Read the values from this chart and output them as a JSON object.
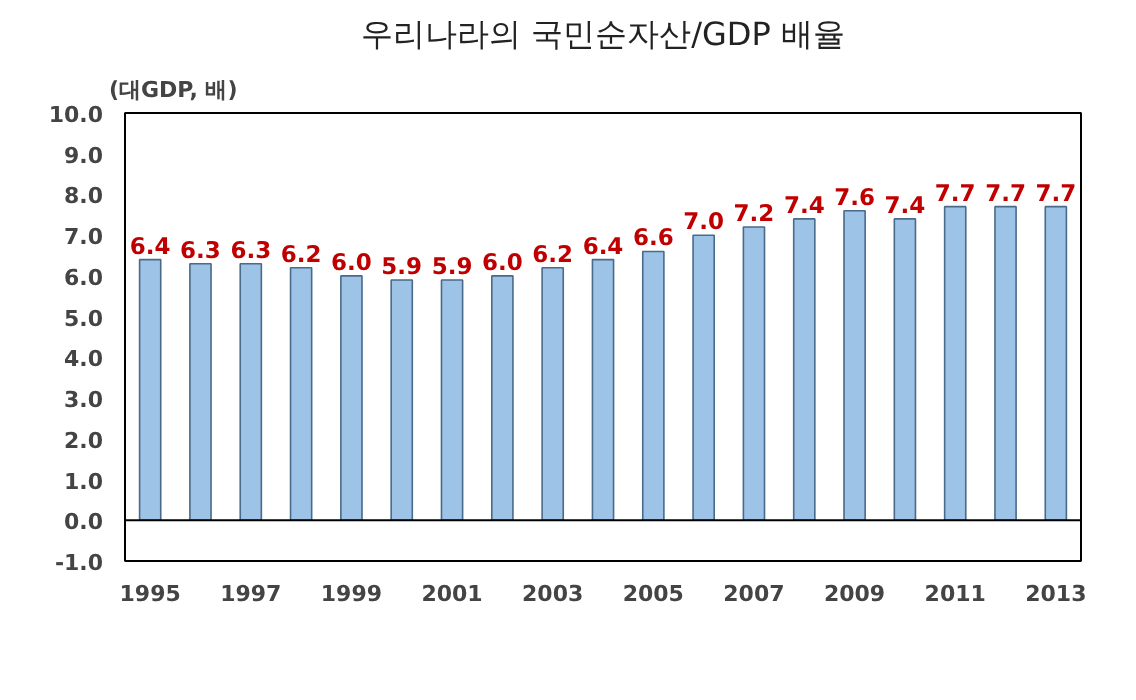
{
  "chart_data": {
    "type": "bar",
    "title": "우리나라의 국민순자산/GDP 배율",
    "ylabel": "(대GDP, 배)",
    "categories": [
      "1995",
      null,
      "1997",
      null,
      "1999",
      null,
      "2001",
      null,
      "2003",
      null,
      "2005",
      null,
      "2007",
      null,
      "2009",
      null,
      "2011",
      null,
      "2013"
    ],
    "values": [
      6.4,
      6.3,
      6.3,
      6.2,
      6.0,
      5.9,
      5.9,
      6.0,
      6.2,
      6.4,
      6.6,
      7.0,
      7.2,
      7.4,
      7.6,
      7.4,
      7.7,
      7.7,
      7.7
    ],
    "value_labels": [
      "6.4",
      "6.3",
      "6.3",
      "6.2",
      "6.0",
      "5.9",
      "5.9",
      "6.0",
      "6.2",
      "6.4",
      "6.6",
      "7.0",
      "7.2",
      "7.4",
      "7.6",
      "7.4",
      "7.7",
      "7.7",
      "7.7"
    ],
    "color": "#9dc3e6",
    "ylim": [
      -1,
      10
    ],
    "yticks": [
      {
        "value": -1,
        "label": "-1.0"
      },
      {
        "value": 0,
        "label": "0.0"
      },
      {
        "value": 1,
        "label": "1.0"
      },
      {
        "value": 2,
        "label": "2.0"
      },
      {
        "value": 3,
        "label": "3.0"
      },
      {
        "value": 4,
        "label": "4.0"
      },
      {
        "value": 5,
        "label": "5.0"
      },
      {
        "value": 6,
        "label": "6.0"
      },
      {
        "value": 7,
        "label": "7.0"
      },
      {
        "value": 8,
        "label": "8.0"
      },
      {
        "value": 9,
        "label": "9.0"
      },
      {
        "value": 10,
        "label": "10.0"
      }
    ],
    "ref_lines": [
      {
        "axis": "y",
        "value": 0
      }
    ],
    "grid": false
  }
}
